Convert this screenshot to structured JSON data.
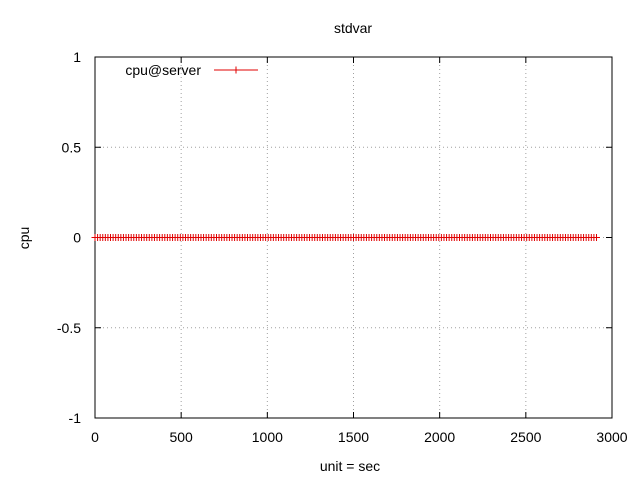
{
  "chart_data": {
    "type": "line",
    "title": "stdvar",
    "xlabel": "unit = sec",
    "ylabel": "cpu",
    "xlim": [
      0,
      3000
    ],
    "ylim": [
      -1,
      1
    ],
    "x_ticks": [
      0,
      500,
      1000,
      1500,
      2000,
      2500,
      3000
    ],
    "y_ticks": [
      -1,
      -0.5,
      0,
      0.5,
      1
    ],
    "x_tick_labels": [
      "0",
      "500",
      "1000",
      "1500",
      "2000",
      "2500",
      "3000"
    ],
    "y_tick_labels": [
      "-1",
      "-0.5",
      "0",
      "0.5",
      "1"
    ],
    "grid": true,
    "legend_position": "top-left",
    "series": [
      {
        "name": "cpu@server",
        "color": "#e00000",
        "marker": "plus",
        "x_start": 0,
        "x_end": 2920,
        "x_step": 15,
        "y_constant": 0
      }
    ]
  }
}
